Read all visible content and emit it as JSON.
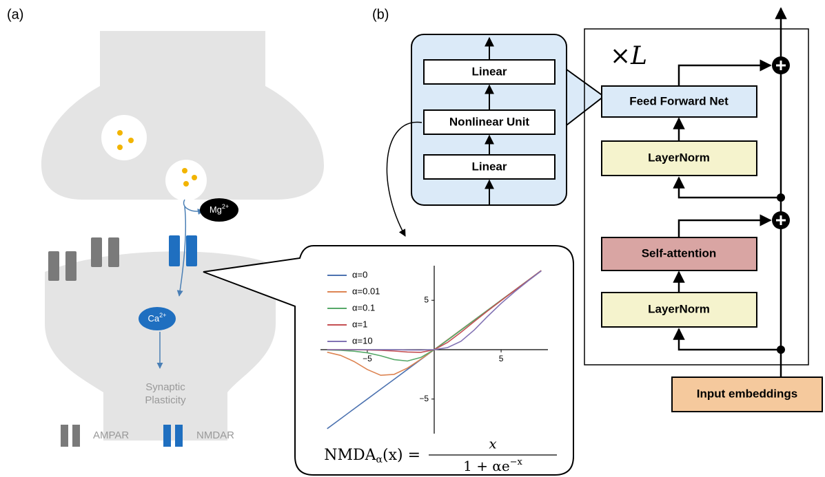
{
  "panel_a": {
    "label": "(a)",
    "mg": "Mg",
    "mg_sup": "2+",
    "ca": "Ca",
    "ca_sup": "2+",
    "outcome": [
      "Synaptic",
      "Plasticity"
    ],
    "legend": [
      "AMPAR",
      "NMDAR"
    ]
  },
  "panel_b": {
    "label": "(b)",
    "ffn_parts": [
      "Linear",
      "Nonlinear Unit",
      "Linear"
    ],
    "repeat": "×L",
    "blocks": [
      "Feed Forward Net",
      "LayerNorm",
      "Self-attention",
      "LayerNorm"
    ],
    "input": "Input embeddings"
  },
  "chart_data": {
    "type": "line",
    "x": [
      -8,
      -7,
      -6,
      -5,
      -4,
      -3,
      -2,
      -1,
      0,
      1,
      2,
      3,
      4,
      5,
      6,
      7,
      8
    ],
    "series": [
      {
        "name": "α=0",
        "color": "#4c72b0",
        "values": [
          -8,
          -7,
          -6,
          -5,
          -4,
          -3,
          -2,
          -1,
          0,
          1,
          2,
          3,
          4,
          5,
          6,
          7,
          8
        ]
      },
      {
        "name": "α=0.01",
        "color": "#dd8452",
        "values": [
          -0.26,
          -0.58,
          -1.19,
          -2.01,
          -2.59,
          -2.5,
          -1.86,
          -0.97,
          0,
          1,
          2,
          3,
          4,
          5,
          6,
          7,
          8
        ]
      },
      {
        "name": "α=0.1",
        "color": "#55a868",
        "values": [
          -0.03,
          -0.06,
          -0.15,
          -0.32,
          -0.62,
          -1,
          -1.15,
          -0.79,
          0,
          0.96,
          1.97,
          2.99,
          4,
          5,
          6,
          7,
          8
        ]
      },
      {
        "name": "α=1",
        "color": "#c44e52",
        "values": [
          0,
          -0.01,
          -0.01,
          -0.03,
          -0.07,
          -0.14,
          -0.24,
          -0.27,
          0,
          0.73,
          1.76,
          2.86,
          3.93,
          4.97,
          5.99,
          6.99,
          8
        ]
      },
      {
        "name": "α=10",
        "color": "#8172b3",
        "values": [
          0,
          0,
          0,
          0,
          -0.01,
          -0.01,
          -0.03,
          -0.04,
          0,
          0.21,
          0.85,
          2,
          3.38,
          4.68,
          5.85,
          6.94,
          7.97
        ]
      }
    ],
    "xlim": [
      -8.5,
      8.5
    ],
    "ylim": [
      -8.5,
      8.5
    ],
    "xticks": [
      {
        "value": -5,
        "label": "−5"
      },
      5
    ],
    "yticks": [
      {
        "value": -5,
        "label": "−5"
      },
      5
    ],
    "legend": "upper left",
    "formula": {
      "lhs": "NMDA",
      "lhs_sub": "α",
      "lhs_arg": "(x) =",
      "numerator": "x",
      "denominator": "1 + αe",
      "denominator_sup": "−x"
    }
  }
}
